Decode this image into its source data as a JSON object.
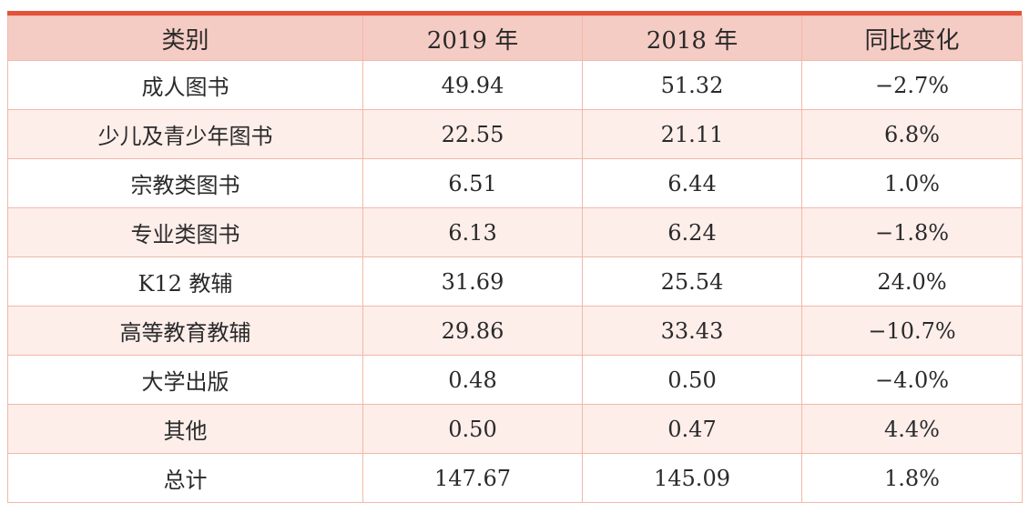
{
  "table": {
    "headers": [
      "类别",
      "2019 年",
      "2018 年",
      "同比变化"
    ],
    "rows": [
      [
        "成人图书",
        "49.94",
        "51.32",
        "−2.7%"
      ],
      [
        "少儿及青少年图书",
        "22.55",
        "21.11",
        "6.8%"
      ],
      [
        "宗教类图书",
        "6.51",
        "6.44",
        "1.0%"
      ],
      [
        "专业类图书",
        "6.13",
        "6.24",
        "−1.8%"
      ],
      [
        "K12 教辅",
        "31.69",
        "25.54",
        "24.0%"
      ],
      [
        "高等教育教辅",
        "29.86",
        "33.43",
        "−10.7%"
      ],
      [
        "大学出版",
        "0.48",
        "0.50",
        "−4.0%"
      ],
      [
        "其他",
        "0.50",
        "0.47",
        "4.4%"
      ],
      [
        "总计",
        "147.67",
        "145.09",
        "1.8%"
      ]
    ]
  },
  "colors": {
    "top_rule": "#e4523c",
    "header_bg": "#f5ccc4",
    "alt_row_bg": "#fdeeea",
    "border": "#f2b8a8"
  }
}
